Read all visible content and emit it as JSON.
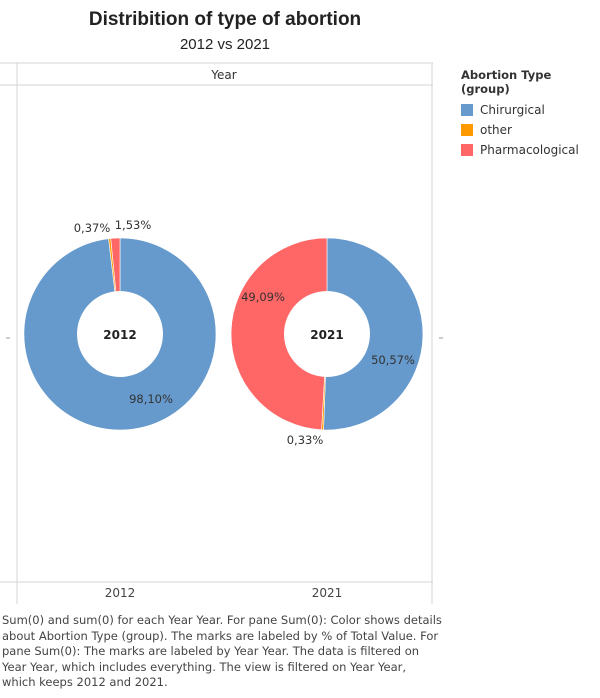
{
  "header": {
    "title": "Distribition of type of abortion",
    "subtitle": "2012 vs 2021"
  },
  "chart_data": {
    "type": "pie",
    "variant": "donut",
    "column_header": "Year",
    "categories": [
      "Chirurgical",
      "other",
      "Pharmacological"
    ],
    "colors": {
      "Chirurgical": "#6699cc",
      "other": "#ff9900",
      "Pharmacological": "#ff6666"
    },
    "panels": [
      {
        "year": "2012",
        "center_label": "2012",
        "values": [
          98.1,
          0.37,
          1.53
        ],
        "labels": [
          "98,10%",
          "0,37%",
          "1,53%"
        ]
      },
      {
        "year": "2021",
        "center_label": "2021",
        "values": [
          50.57,
          0.33,
          49.09
        ],
        "labels": [
          "50,57%",
          "0,33%",
          "49,09%"
        ]
      }
    ],
    "legend": {
      "title": "Abortion Type (group)",
      "position": "right"
    }
  },
  "caption": "Sum(0) and sum(0) for each Year Year.  For pane Sum(0):  Color shows details about Abortion Type (group).  The marks are labeled by % of Total Value.  For pane Sum(0):  The marks are labeled by Year Year. The data is filtered on Year Year, which includes everything. The view is filtered on Year Year, which keeps 2012 and 2021."
}
